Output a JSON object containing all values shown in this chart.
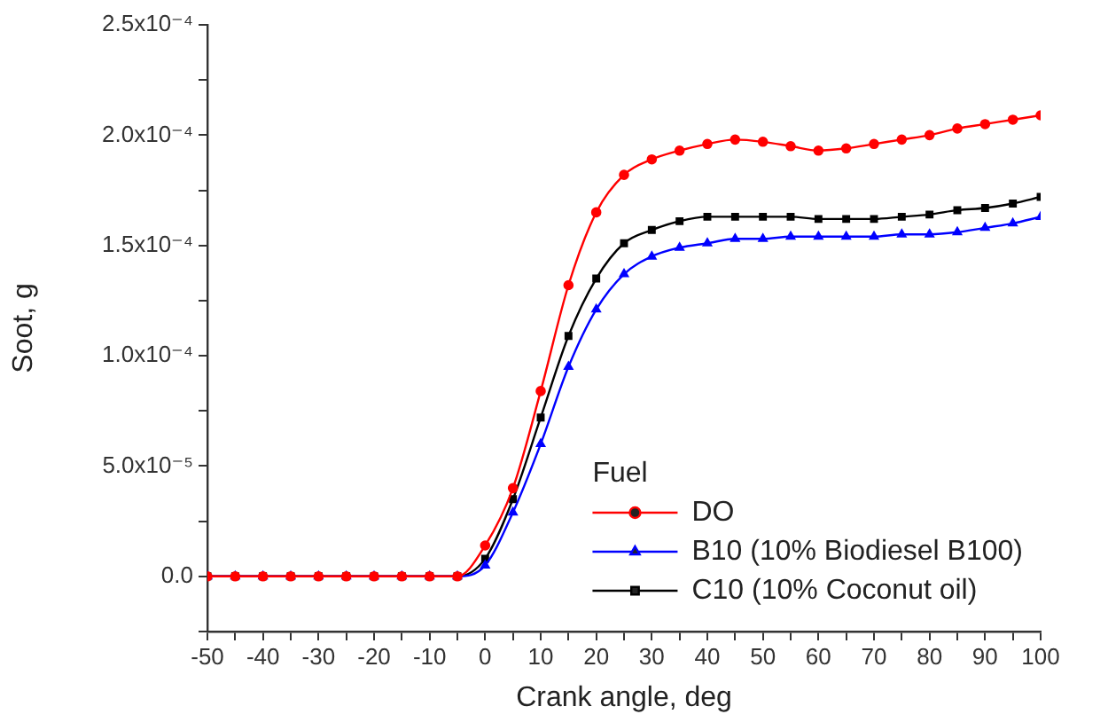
{
  "chart_data": {
    "type": "line",
    "xlabel": "Crank angle, deg",
    "ylabel": "Soot, g",
    "legend_title": "Fuel",
    "x": [
      -50,
      -45,
      -40,
      -35,
      -30,
      -25,
      -20,
      -15,
      -10,
      -5,
      0,
      5,
      10,
      15,
      20,
      25,
      30,
      35,
      40,
      45,
      50,
      55,
      60,
      65,
      70,
      75,
      80,
      85,
      90,
      95,
      100
    ],
    "series": [
      {
        "name": "DO",
        "color": "#ff0000",
        "marker": "circle",
        "values": [
          0,
          0,
          0,
          0,
          0,
          0,
          0,
          0,
          0,
          0,
          1.4e-05,
          4e-05,
          8.4e-05,
          0.000132,
          0.000165,
          0.000182,
          0.000189,
          0.000193,
          0.000196,
          0.000198,
          0.000197,
          0.000195,
          0.000193,
          0.000194,
          0.000196,
          0.000198,
          0.0002,
          0.000203,
          0.000205,
          0.000207,
          0.000209
        ]
      },
      {
        "name": "B10 (10% Biodiesel B100)",
        "color": "#0000ff",
        "marker": "triangle",
        "values": [
          0,
          0,
          0,
          0,
          0,
          0,
          0,
          0,
          0,
          0,
          5e-06,
          2.9e-05,
          6e-05,
          9.5e-05,
          0.000121,
          0.000137,
          0.000145,
          0.000149,
          0.000151,
          0.000153,
          0.000153,
          0.000154,
          0.000154,
          0.000154,
          0.000154,
          0.000155,
          0.000155,
          0.000156,
          0.000158,
          0.00016,
          0.000163
        ]
      },
      {
        "name": "C10 (10% Coconut oil)",
        "color": "#000000",
        "marker": "square",
        "values": [
          0,
          0,
          0,
          0,
          0,
          0,
          0,
          0,
          0,
          0,
          8e-06,
          3.5e-05,
          7.2e-05,
          0.000109,
          0.000135,
          0.000151,
          0.000157,
          0.000161,
          0.000163,
          0.000163,
          0.000163,
          0.000163,
          0.000162,
          0.000162,
          0.000162,
          0.000163,
          0.000164,
          0.000166,
          0.000167,
          0.000169,
          0.000172
        ]
      }
    ],
    "xlim": [
      -50,
      100
    ],
    "xticks": [
      -50,
      {
        "value": -45,
        "label": null
      },
      -40,
      {
        "value": -35,
        "label": null
      },
      -30,
      {
        "value": -25,
        "label": null
      },
      -20,
      {
        "value": -15,
        "label": null
      },
      -10,
      {
        "value": -5,
        "label": null
      },
      0,
      {
        "value": 5,
        "label": null
      },
      10,
      {
        "value": 15,
        "label": null
      },
      20,
      {
        "value": 25,
        "label": null
      },
      30,
      {
        "value": 35,
        "label": null
      },
      40,
      {
        "value": 45,
        "label": null
      },
      50,
      {
        "value": 55,
        "label": null
      },
      60,
      {
        "value": 65,
        "label": null
      },
      70,
      {
        "value": 75,
        "label": null
      },
      80,
      {
        "value": 85,
        "label": null
      },
      90,
      {
        "value": 95,
        "label": null
      },
      100
    ],
    "ylim": [
      -2.5e-05,
      0.00025
    ],
    "yticks": [
      {
        "value": -2.5e-05,
        "label": null
      },
      {
        "value": 0,
        "label": "0.0"
      },
      {
        "value": 2.5e-05,
        "label": null
      },
      {
        "value": 5e-05,
        "label": "5.0x10⁻⁵"
      },
      {
        "value": 7.5e-05,
        "label": null
      },
      {
        "value": 0.0001,
        "label": "1.0x10⁻⁴"
      },
      {
        "value": 0.000125,
        "label": null
      },
      {
        "value": 0.00015,
        "label": "1.5x10⁻⁴"
      },
      {
        "value": 0.000175,
        "label": null
      },
      {
        "value": 0.0002,
        "label": "2.0x10⁻⁴"
      },
      {
        "value": 0.000225,
        "label": null
      },
      {
        "value": 0.00025,
        "label": "2.5x10⁻⁴"
      }
    ],
    "grid": false,
    "legend": "bottom right",
    "line_style": "solid"
  }
}
